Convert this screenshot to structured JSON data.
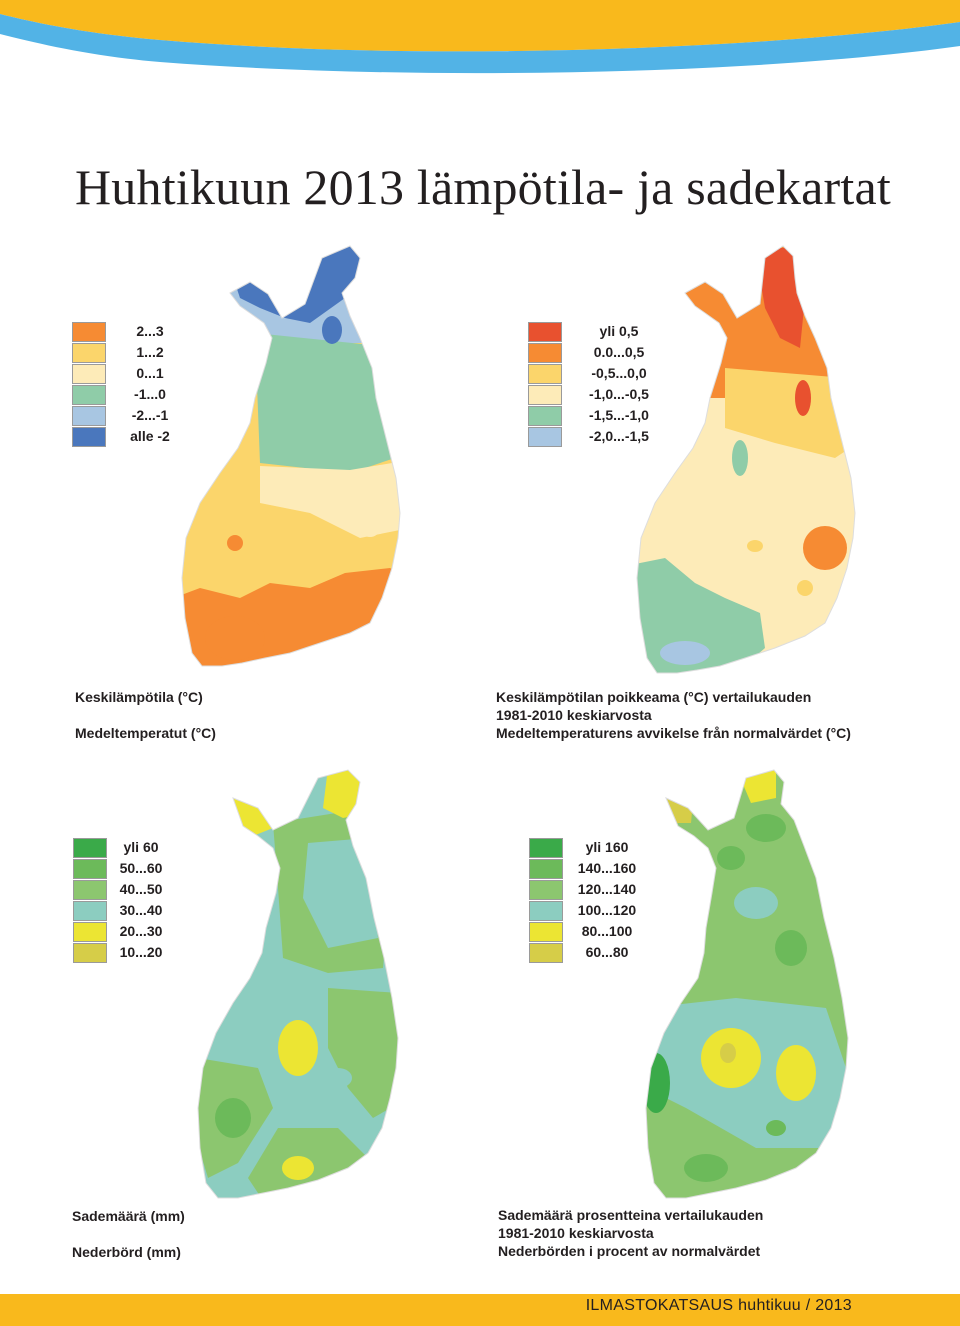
{
  "page_title": "Huhtikuun 2013 lämpötila- ja sadekartat",
  "footer": "ILMASTOKATSAUS huhtikuu / 2013",
  "colors": {
    "top_band_yellow": "#f9b91c",
    "top_band_blue": "#52b3e6",
    "footer_band": "#f9b91c"
  },
  "maps": [
    {
      "id": "mean-temperature",
      "caption_lines": [
        "Keskilämpötila (°C)",
        "Medeltemperatut (°C)"
      ],
      "legend": [
        {
          "label": "2...3",
          "color": "#f68b33"
        },
        {
          "label": "1...2",
          "color": "#fbd56b"
        },
        {
          "label": "0...1",
          "color": "#fdebb8"
        },
        {
          "label": "-1...0",
          "color": "#8fcca8"
        },
        {
          "label": "-2...-1",
          "color": "#a8c6e2"
        },
        {
          "label": "alle -2",
          "color": "#4a77bd"
        }
      ]
    },
    {
      "id": "temperature-anomaly",
      "caption_lines": [
        "Keskilämpötilan poikkeama (°C) vertailukauden",
        "1981-2010 keskiarvosta",
        "Medeltemperaturens avvikelse från normalvärdet (°C)"
      ],
      "legend": [
        {
          "label": "yli 0,5",
          "color": "#e8512f"
        },
        {
          "label": "0.0...0,5",
          "color": "#f68b33"
        },
        {
          "label": "-0,5...0,0",
          "color": "#fbd56b"
        },
        {
          "label": "-1,0...-0,5",
          "color": "#fdebb8"
        },
        {
          "label": "-1,5...-1,0",
          "color": "#8fcca8"
        },
        {
          "label": "-2,0...-1,5",
          "color": "#a8c6e2"
        }
      ]
    },
    {
      "id": "precipitation",
      "caption_lines": [
        "Sademäärä (mm)",
        "Nederbörd (mm)"
      ],
      "legend": [
        {
          "label": "yli 60",
          "color": "#3aaa49"
        },
        {
          "label": "50...60",
          "color": "#6cba5a"
        },
        {
          "label": "40...50",
          "color": "#8cc66f"
        },
        {
          "label": "30...40",
          "color": "#8ccdc0"
        },
        {
          "label": "20...30",
          "color": "#ece533"
        },
        {
          "label": "10...20",
          "color": "#d6cd48"
        }
      ]
    },
    {
      "id": "precipitation-percent",
      "caption_lines": [
        "Sademäärä prosentteina vertailukauden",
        "1981-2010 keskiarvosta",
        "Nederbörden i procent av normalvärdet"
      ],
      "legend": [
        {
          "label": "yli 160",
          "color": "#3aaa49"
        },
        {
          "label": "140...160",
          "color": "#6cba5a"
        },
        {
          "label": "120...140",
          "color": "#8cc66f"
        },
        {
          "label": "100...120",
          "color": "#8ccdc0"
        },
        {
          "label": "80...100",
          "color": "#ece533"
        },
        {
          "label": "60...80",
          "color": "#d6cd48"
        }
      ]
    }
  ]
}
